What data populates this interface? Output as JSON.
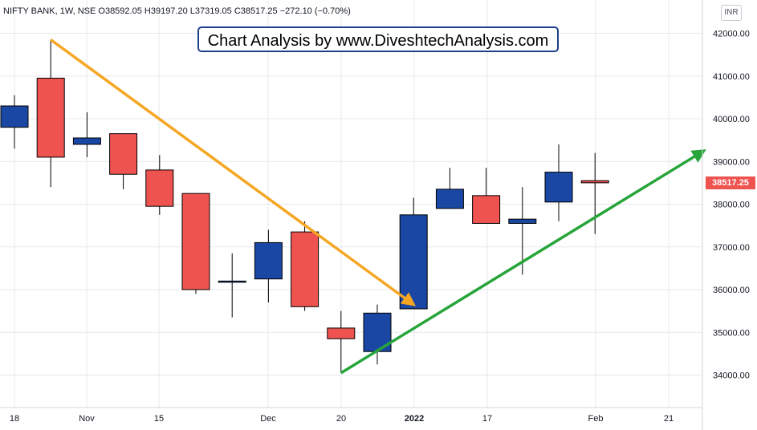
{
  "header": {
    "symbol": "NIFTY BANK, 1W, NSE",
    "open": "O38592.05",
    "high": "H39197.20",
    "low": "L37319.05",
    "close": "C38517.25",
    "change": "−272.10 (−0.70%)",
    "currency": "INR"
  },
  "watermark_text": "Chart Analysis by www.DiveshtechAnalysis.com",
  "last_price_label": "38517.25",
  "colors": {
    "up": "#1947a3",
    "down": "#ef5350",
    "downtrend_arrow": "#f5a623",
    "uptrend_arrow": "#27a53a",
    "grid": "#e6e8ee",
    "axis_text": "#131722"
  },
  "chart_data": {
    "type": "candlestick",
    "y_ticks": [
      "34000.00",
      "35000.00",
      "36000.00",
      "37000.00",
      "38000.00",
      "39000.00",
      "40000.00",
      "41000.00",
      "42000.00"
    ],
    "x_ticks": [
      "18",
      "Nov",
      "15",
      "Dec",
      "20",
      "2022",
      "17",
      "Feb",
      "21"
    ],
    "ylim": [
      33600,
      42500
    ],
    "candles": [
      {
        "open": 39800,
        "high": 40550,
        "low": 39300,
        "close": 40300
      },
      {
        "open": 40950,
        "high": 41850,
        "low": 38400,
        "close": 39100
      },
      {
        "open": 39400,
        "high": 40150,
        "low": 39100,
        "close": 39550
      },
      {
        "open": 39650,
        "high": 39650,
        "low": 38350,
        "close": 38700
      },
      {
        "open": 38800,
        "high": 39150,
        "low": 37750,
        "close": 37950
      },
      {
        "open": 38250,
        "high": 38250,
        "low": 35900,
        "close": 36000
      },
      {
        "open": 36200,
        "high": 36850,
        "low": 35350,
        "close": 36200
      },
      {
        "open": 36250,
        "high": 37400,
        "low": 35700,
        "close": 37100
      },
      {
        "open": 37350,
        "high": 37600,
        "low": 35500,
        "close": 35600
      },
      {
        "open": 35100,
        "high": 35500,
        "low": 34050,
        "close": 34850
      },
      {
        "open": 34550,
        "high": 35650,
        "low": 34250,
        "close": 35450
      },
      {
        "open": 35550,
        "high": 38150,
        "low": 35550,
        "close": 37750
      },
      {
        "open": 37900,
        "high": 38850,
        "low": 37900,
        "close": 38350
      },
      {
        "open": 38200,
        "high": 38850,
        "low": 37550,
        "close": 37550
      },
      {
        "open": 37550,
        "high": 38400,
        "low": 36350,
        "close": 37650
      },
      {
        "open": 38050,
        "high": 39400,
        "low": 37600,
        "close": 38750
      },
      {
        "open": 38550,
        "high": 39200,
        "low": 37300,
        "close": 38500
      }
    ],
    "trend_lines": [
      {
        "name": "downtrend",
        "from_candle": 1,
        "from_price": 41850,
        "to_candle": 11,
        "to_price": 35650
      },
      {
        "name": "uptrend",
        "from_candle": 9,
        "from_price": 34050,
        "to_candle": 19,
        "to_price": 39250
      }
    ]
  }
}
